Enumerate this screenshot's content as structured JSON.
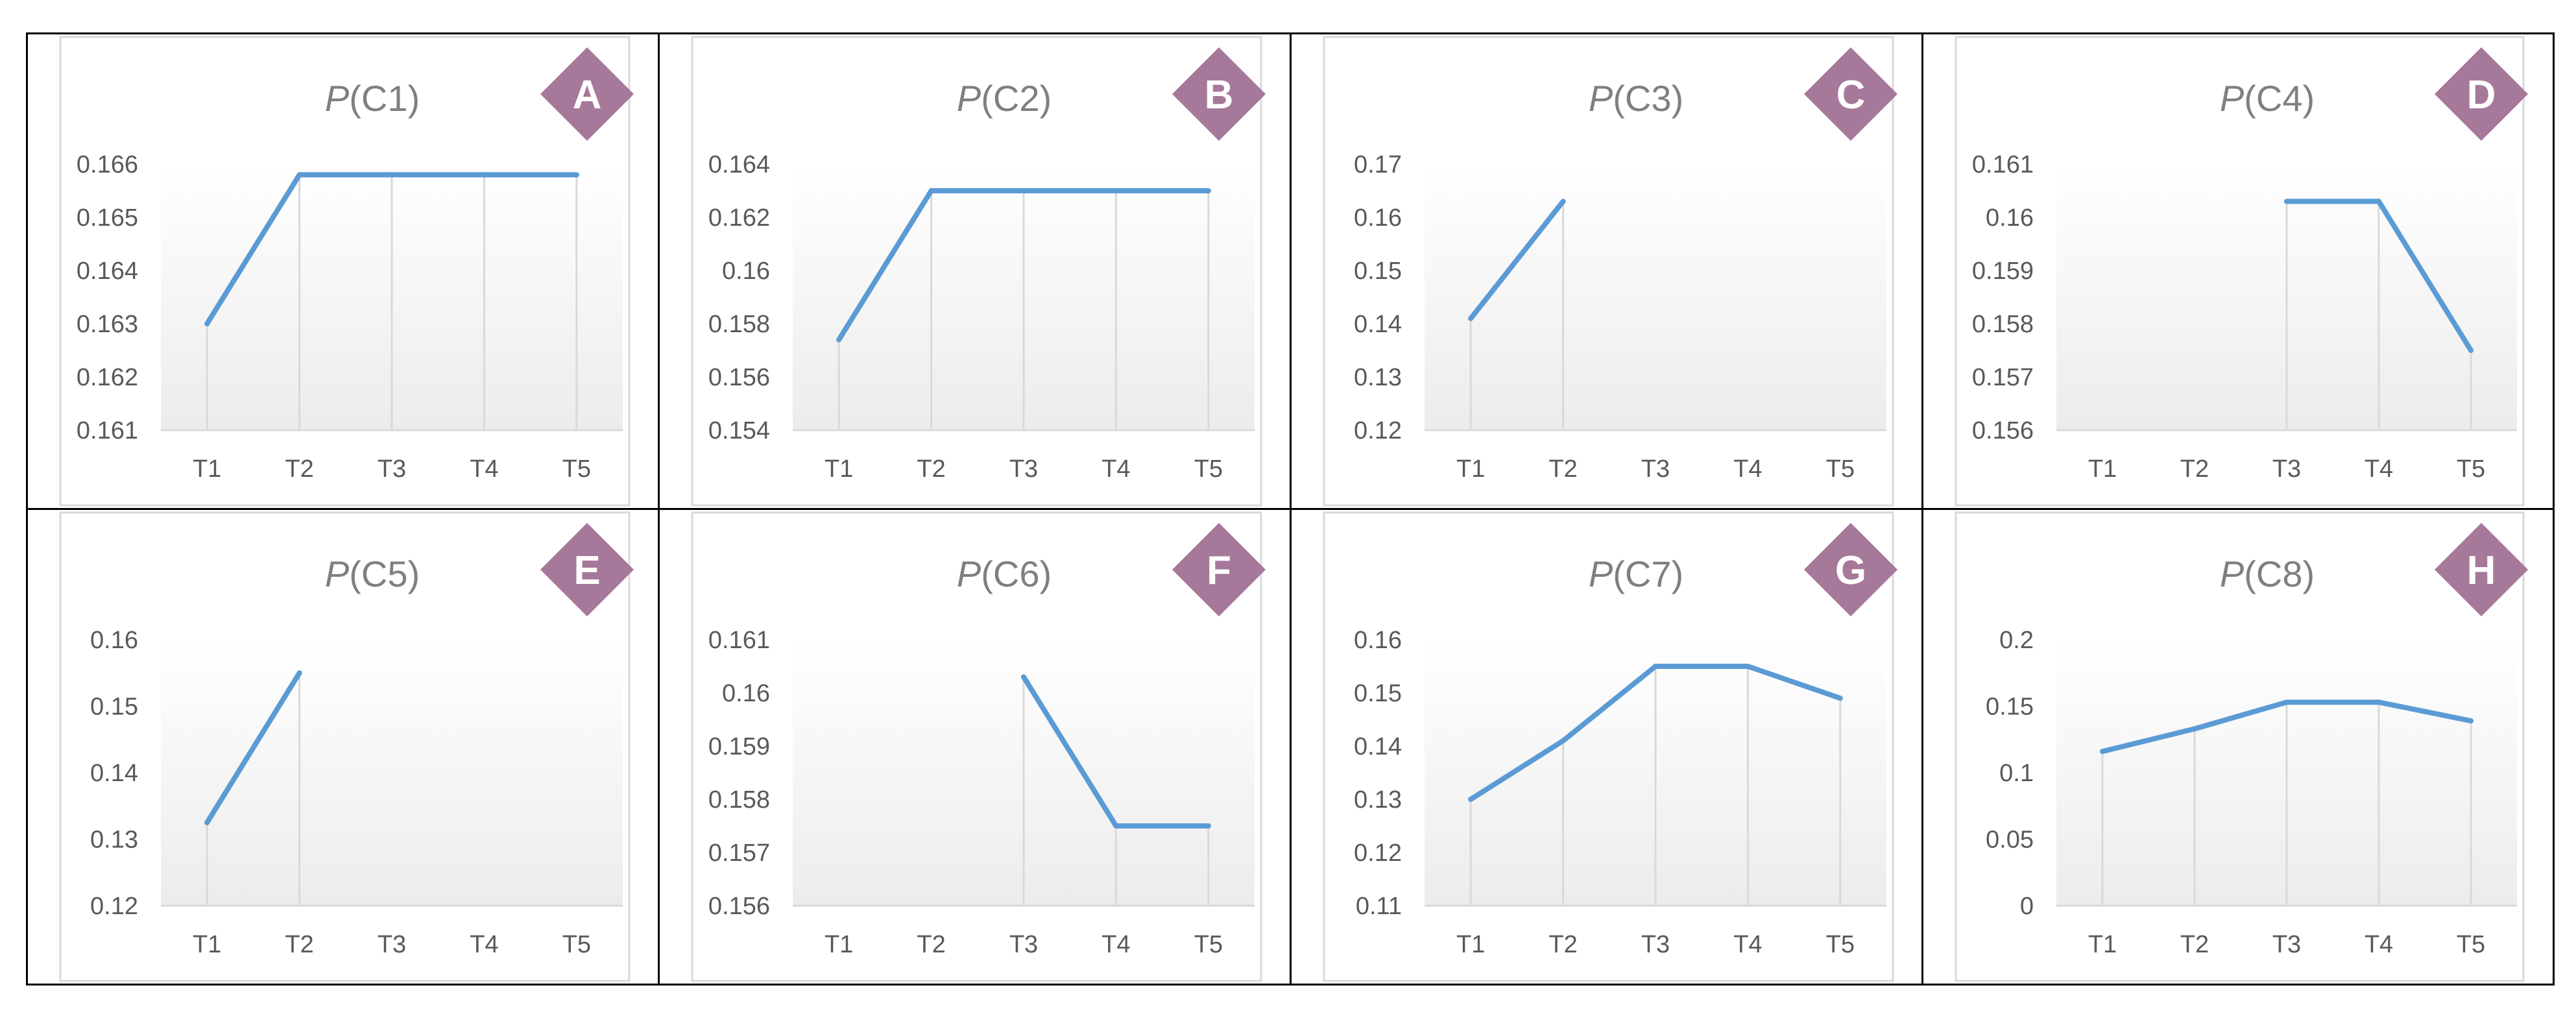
{
  "colors": {
    "line": "#5B9BD5",
    "badge": "#A6789A",
    "badge_text": "#FFFFFF",
    "title": "#7F7F7F",
    "tick": "#595959",
    "grid": "#D9D9D9",
    "panel_border": "#D9D9D9"
  },
  "chart_data": [
    {
      "type": "line",
      "title_prefix": "P",
      "title_suffix": "(C1)",
      "badge": "A",
      "categories": [
        "T1",
        "T2",
        "T3",
        "T4",
        "T5"
      ],
      "values": [
        0.163,
        0.1658,
        0.1658,
        0.1658,
        0.1658
      ],
      "ylim": [
        0.161,
        0.166
      ],
      "yticks": [
        "0.161",
        "0.162",
        "0.163",
        "0.164",
        "0.165",
        "0.166"
      ]
    },
    {
      "type": "line",
      "title_prefix": "P",
      "title_suffix": "(C2)",
      "badge": "B",
      "categories": [
        "T1",
        "T2",
        "T3",
        "T4",
        "T5"
      ],
      "values": [
        0.1574,
        0.163,
        0.163,
        0.163,
        0.163
      ],
      "ylim": [
        0.154,
        0.164
      ],
      "yticks": [
        "0.154",
        "0.156",
        "0.158",
        "0.16",
        "0.162",
        "0.164"
      ]
    },
    {
      "type": "line",
      "title_prefix": "P",
      "title_suffix": "(C3)",
      "badge": "C",
      "categories": [
        "T1",
        "T2",
        "T3",
        "T4",
        "T5"
      ],
      "values": [
        0.141,
        0.163,
        null,
        null,
        null
      ],
      "ylim": [
        0.12,
        0.17
      ],
      "yticks": [
        "0.12",
        "0.13",
        "0.14",
        "0.15",
        "0.16",
        "0.17"
      ]
    },
    {
      "type": "line",
      "title_prefix": "P",
      "title_suffix": "(C4)",
      "badge": "D",
      "categories": [
        "T1",
        "T2",
        "T3",
        "T4",
        "T5"
      ],
      "values": [
        null,
        null,
        0.1603,
        0.1603,
        0.1575
      ],
      "ylim": [
        0.156,
        0.161
      ],
      "yticks": [
        "0.156",
        "0.157",
        "0.158",
        "0.159",
        "0.16",
        "0.161"
      ]
    },
    {
      "type": "line",
      "title_prefix": "P",
      "title_suffix": "(C5)",
      "badge": "E",
      "categories": [
        "T1",
        "T2",
        "T3",
        "T4",
        "T5"
      ],
      "values": [
        0.1325,
        0.155,
        null,
        null,
        null
      ],
      "ylim": [
        0.12,
        0.16
      ],
      "yticks": [
        "0.12",
        "0.13",
        "0.14",
        "0.15",
        "0.16"
      ]
    },
    {
      "type": "line",
      "title_prefix": "P",
      "title_suffix": "(C6)",
      "badge": "F",
      "categories": [
        "T1",
        "T2",
        "T3",
        "T4",
        "T5"
      ],
      "values": [
        null,
        null,
        0.1603,
        0.1575,
        0.1575
      ],
      "ylim": [
        0.156,
        0.161
      ],
      "yticks": [
        "0.156",
        "0.157",
        "0.158",
        "0.159",
        "0.16",
        "0.161"
      ]
    },
    {
      "type": "line",
      "title_prefix": "P",
      "title_suffix": "(C7)",
      "badge": "G",
      "categories": [
        "T1",
        "T2",
        "T3",
        "T4",
        "T5"
      ],
      "values": [
        0.13,
        0.141,
        0.155,
        0.155,
        0.149
      ],
      "ylim": [
        0.11,
        0.16
      ],
      "yticks": [
        "0.11",
        "0.12",
        "0.13",
        "0.14",
        "0.15",
        "0.16"
      ]
    },
    {
      "type": "line",
      "title_prefix": "P",
      "title_suffix": "(C8)",
      "badge": "H",
      "categories": [
        "T1",
        "T2",
        "T3",
        "T4",
        "T5"
      ],
      "values": [
        0.116,
        0.133,
        0.153,
        0.153,
        0.139
      ],
      "ylim": [
        0,
        0.2
      ],
      "yticks": [
        "0",
        "0.05",
        "0.1",
        "0.15",
        "0.2"
      ]
    }
  ]
}
